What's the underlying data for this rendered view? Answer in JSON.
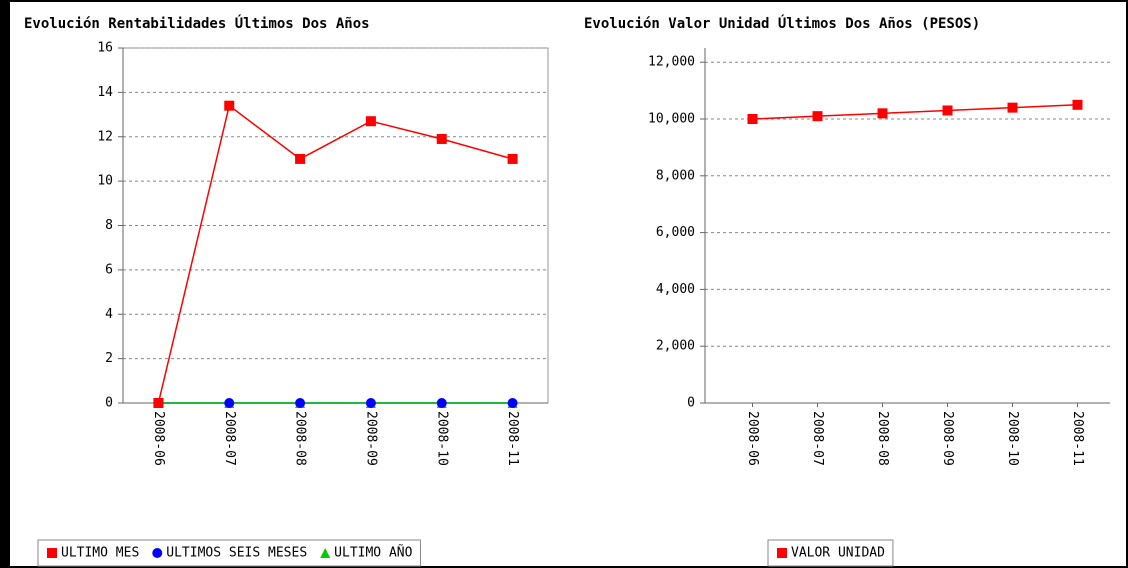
{
  "chart_data": [
    {
      "type": "line",
      "title": "Evolución Rentabilidades Últimos Dos Años",
      "categories": [
        "2008-06",
        "2008-07",
        "2008-08",
        "2008-09",
        "2008-10",
        "2008-11"
      ],
      "series": [
        {
          "name": "ULTIMO MES",
          "color": "#ff0000",
          "marker": "square",
          "values": [
            0,
            13.4,
            11,
            12.7,
            11.9,
            11
          ]
        },
        {
          "name": "ULTIMOS SEIS MESES",
          "color": "#0000ff",
          "marker": "circle",
          "values": [
            0,
            0,
            0,
            0,
            0,
            0
          ]
        },
        {
          "name": "ULTIMO AÑO",
          "color": "#00cc00",
          "marker": "triangle",
          "values": [
            0,
            0,
            0,
            0,
            0,
            0
          ]
        }
      ],
      "ylim": [
        0,
        16
      ],
      "yticks": [
        0,
        2,
        4,
        6,
        8,
        10,
        12,
        14,
        16
      ],
      "grid": true
    },
    {
      "type": "line",
      "title": "Evolución Valor Unidad Últimos Dos Años (PESOS)",
      "categories": [
        "2008-06",
        "2008-07",
        "2008-08",
        "2008-09",
        "2008-10",
        "2008-11"
      ],
      "series": [
        {
          "name": "VALOR UNIDAD",
          "color": "#ff0000",
          "marker": "square",
          "values": [
            10000,
            10100,
            10200,
            10300,
            10400,
            10500
          ]
        }
      ],
      "ylim": [
        0,
        12500
      ],
      "yticks": [
        0,
        {
          "value": 2000,
          "label": "2,000"
        },
        {
          "value": 4000,
          "label": "4,000"
        },
        {
          "value": 6000,
          "label": "6,000"
        },
        {
          "value": 8000,
          "label": "8,000"
        },
        {
          "value": 10000,
          "label": "10,000"
        },
        {
          "value": 12000,
          "label": "12,000"
        }
      ],
      "grid": true
    }
  ]
}
